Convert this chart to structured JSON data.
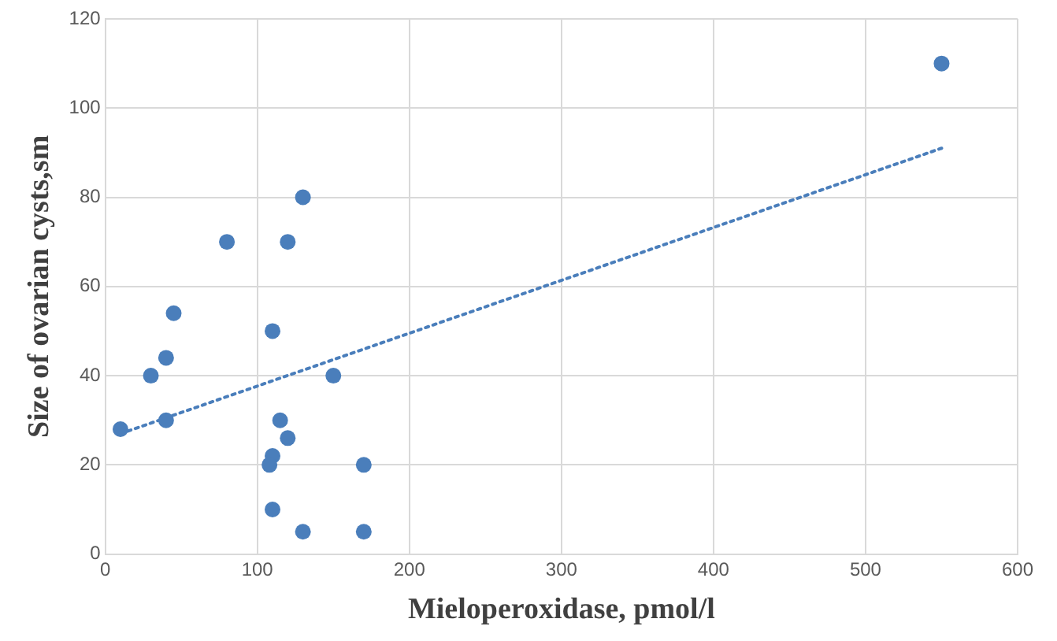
{
  "chart_data": {
    "type": "scatter",
    "xlabel": "Mieloperoxidase, pmol/l",
    "ylabel": "Size of ovarian cysts,sm",
    "xlim": [
      0,
      600
    ],
    "xticks": [
      0,
      100,
      200,
      300,
      400,
      500,
      600
    ],
    "ylim": [
      0,
      120
    ],
    "yticks": [
      0,
      20,
      40,
      60,
      80,
      100,
      120
    ],
    "grid": true,
    "legend": false,
    "marker": "circle",
    "series": [
      {
        "type": "scatter",
        "color": "#4a7ebb",
        "x": [
          10,
          30,
          40,
          40,
          45,
          80,
          110,
          110,
          108,
          110,
          115,
          120,
          120,
          130,
          130,
          150,
          170,
          170,
          550
        ],
        "values": [
          28,
          40,
          44,
          30,
          54,
          70,
          50,
          22,
          20,
          10,
          30,
          26,
          70,
          80,
          5,
          40,
          20,
          5,
          110
        ]
      },
      {
        "type": "line",
        "color": "#4a7ebb",
        "line_style": "dotted",
        "marker": "none",
        "x": [
          10,
          550
        ],
        "values": [
          27,
          91
        ]
      }
    ]
  }
}
